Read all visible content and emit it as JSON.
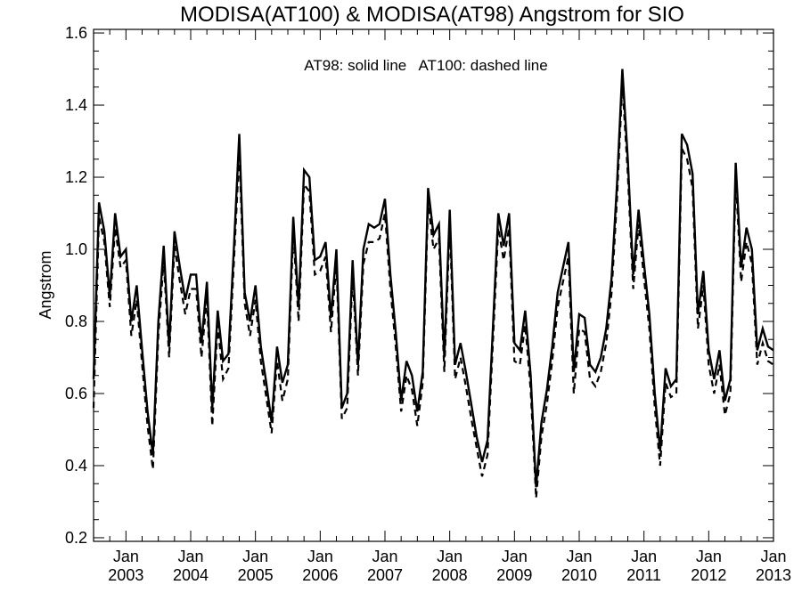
{
  "chart_data": {
    "type": "line",
    "title": "MODISA(AT100) & MODISA(AT98)  Angstrom for SIO",
    "xlabel": "",
    "ylabel": "Angstrom",
    "annotation": "AT98: solid line   AT100: dashed line",
    "ylim": [
      0.19,
      1.61
    ],
    "xlim": [
      "2002-07",
      "2013-01"
    ],
    "y_ticks": [
      "0.2",
      "0.4",
      "0.6",
      "0.8",
      "1.0",
      "1.2",
      "1.4",
      "1.6"
    ],
    "x_ticks": [
      {
        "month": "Jan",
        "year": "2003",
        "date": "2003-01"
      },
      {
        "month": "Jan",
        "year": "2004",
        "date": "2004-01"
      },
      {
        "month": "Jan",
        "year": "2005",
        "date": "2005-01"
      },
      {
        "month": "Jan",
        "year": "2006",
        "date": "2006-01"
      },
      {
        "month": "Jan",
        "year": "2007",
        "date": "2007-01"
      },
      {
        "month": "Jan",
        "year": "2008",
        "date": "2008-01"
      },
      {
        "month": "Jan",
        "year": "2009",
        "date": "2009-01"
      },
      {
        "month": "Jan",
        "year": "2010",
        "date": "2010-01"
      },
      {
        "month": "Jan",
        "year": "2011",
        "date": "2011-01"
      },
      {
        "month": "Jan",
        "year": "2012",
        "date": "2012-01"
      },
      {
        "month": "Jan",
        "year": "2013",
        "date": "2013-01"
      }
    ],
    "x": [
      "2002-07",
      "2002-08",
      "2002-09",
      "2002-10",
      "2002-11",
      "2002-12",
      "2003-01",
      "2003-02",
      "2003-03",
      "2003-04",
      "2003-05",
      "2003-06",
      "2003-07",
      "2003-08",
      "2003-09",
      "2003-10",
      "2003-11",
      "2003-12",
      "2004-01",
      "2004-02",
      "2004-03",
      "2004-04",
      "2004-05",
      "2004-06",
      "2004-07",
      "2004-08",
      "2004-09",
      "2004-10",
      "2004-11",
      "2004-12",
      "2005-01",
      "2005-02",
      "2005-03",
      "2005-04",
      "2005-05",
      "2005-06",
      "2005-07",
      "2005-08",
      "2005-09",
      "2005-10",
      "2005-11",
      "2005-12",
      "2006-01",
      "2006-02",
      "2006-03",
      "2006-04",
      "2006-05",
      "2006-06",
      "2006-07",
      "2006-08",
      "2006-09",
      "2006-10",
      "2006-11",
      "2006-12",
      "2007-01",
      "2007-02",
      "2007-03",
      "2007-04",
      "2007-05",
      "2007-06",
      "2007-07",
      "2007-08",
      "2007-09",
      "2007-10",
      "2007-11",
      "2007-12",
      "2008-01",
      "2008-02",
      "2008-03",
      "2008-04",
      "2008-05",
      "2008-06",
      "2008-07",
      "2008-08",
      "2008-09",
      "2008-10",
      "2008-11",
      "2008-12",
      "2009-01",
      "2009-02",
      "2009-03",
      "2009-04",
      "2009-05",
      "2009-06",
      "2009-07",
      "2009-08",
      "2009-09",
      "2009-10",
      "2009-11",
      "2009-12",
      "2010-01",
      "2010-02",
      "2010-03",
      "2010-04",
      "2010-05",
      "2010-06",
      "2010-07",
      "2010-08",
      "2010-09",
      "2010-10",
      "2010-11",
      "2010-12",
      "2011-01",
      "2011-02",
      "2011-03",
      "2011-04",
      "2011-05",
      "2011-06",
      "2011-07",
      "2011-08",
      "2011-09",
      "2011-10",
      "2011-11",
      "2011-12",
      "2012-01",
      "2012-02",
      "2012-03",
      "2012-04",
      "2012-05",
      "2012-06",
      "2012-07",
      "2012-08",
      "2012-09",
      "2012-10",
      "2012-11",
      "2012-12",
      "2013-01"
    ],
    "series": [
      {
        "name": "AT98",
        "style": "solid",
        "color": "#000000",
        "values": [
          0.64,
          1.13,
          1.05,
          0.87,
          1.1,
          0.98,
          1.0,
          0.8,
          0.9,
          0.72,
          0.55,
          0.43,
          0.8,
          1.01,
          0.73,
          1.05,
          0.95,
          0.86,
          0.93,
          0.93,
          0.74,
          0.91,
          0.56,
          0.83,
          0.69,
          0.71,
          1.0,
          1.32,
          0.88,
          0.8,
          0.9,
          0.73,
          0.63,
          0.52,
          0.73,
          0.63,
          0.68,
          1.09,
          0.84,
          1.22,
          1.2,
          0.97,
          0.98,
          1.02,
          0.81,
          1.0,
          0.56,
          0.6,
          0.97,
          0.68,
          1.0,
          1.07,
          1.06,
          1.07,
          1.14,
          0.93,
          0.77,
          0.58,
          0.69,
          0.65,
          0.55,
          0.66,
          1.17,
          1.04,
          1.07,
          0.7,
          1.11,
          0.68,
          0.74,
          0.66,
          0.57,
          0.48,
          0.41,
          0.47,
          0.78,
          1.1,
          1.01,
          1.1,
          0.74,
          0.72,
          0.83,
          0.65,
          0.34,
          0.52,
          0.61,
          0.73,
          0.88,
          0.95,
          1.02,
          0.66,
          0.82,
          0.81,
          0.68,
          0.66,
          0.7,
          0.78,
          0.92,
          1.18,
          1.5,
          1.25,
          0.93,
          1.11,
          0.96,
          0.82,
          0.6,
          0.44,
          0.67,
          0.62,
          0.64,
          1.32,
          1.29,
          1.21,
          0.82,
          0.94,
          0.72,
          0.64,
          0.72,
          0.58,
          0.64,
          1.24,
          0.95,
          1.06,
          1.0,
          0.72,
          0.78,
          0.73,
          0.72
        ]
      },
      {
        "name": "AT100",
        "style": "dashed",
        "color": "#000000",
        "values": [
          0.56,
          1.09,
          1.02,
          0.84,
          1.06,
          0.95,
          0.97,
          0.76,
          0.86,
          0.68,
          0.51,
          0.39,
          0.76,
          0.97,
          0.7,
          1.01,
          0.91,
          0.82,
          0.89,
          0.89,
          0.7,
          0.87,
          0.51,
          0.79,
          0.64,
          0.67,
          0.96,
          1.27,
          0.85,
          0.76,
          0.86,
          0.69,
          0.59,
          0.49,
          0.69,
          0.58,
          0.64,
          1.05,
          0.8,
          1.18,
          1.16,
          0.93,
          0.94,
          0.98,
          0.77,
          0.96,
          0.53,
          0.56,
          0.93,
          0.65,
          0.96,
          1.02,
          1.02,
          1.03,
          1.1,
          0.89,
          0.73,
          0.55,
          0.65,
          0.61,
          0.51,
          0.63,
          1.13,
          1.0,
          1.03,
          0.66,
          1.07,
          0.64,
          0.7,
          0.62,
          0.53,
          0.45,
          0.37,
          0.43,
          0.74,
          1.06,
          0.97,
          1.06,
          0.69,
          0.68,
          0.79,
          0.61,
          0.31,
          0.48,
          0.57,
          0.69,
          0.84,
          0.91,
          0.98,
          0.6,
          0.78,
          0.77,
          0.64,
          0.62,
          0.66,
          0.74,
          0.88,
          1.14,
          1.46,
          1.21,
          0.89,
          1.07,
          0.92,
          0.78,
          0.56,
          0.4,
          0.63,
          0.59,
          0.6,
          1.28,
          1.25,
          1.17,
          0.78,
          0.9,
          0.68,
          0.6,
          0.68,
          0.54,
          0.6,
          1.2,
          0.91,
          1.02,
          0.96,
          0.68,
          0.74,
          0.69,
          0.68
        ]
      }
    ]
  }
}
